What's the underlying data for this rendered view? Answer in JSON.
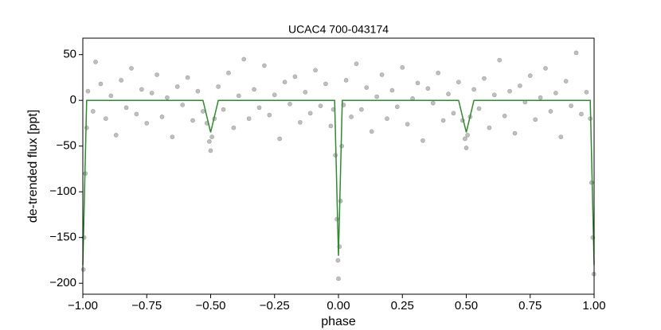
{
  "chart_data": {
    "type": "scatter",
    "title": "UCAC4 700-043174",
    "x_label": "phase",
    "y_label": "de-trended flux [ppt]",
    "xlim": [
      -1,
      1
    ],
    "ylim": [
      -212,
      68
    ],
    "xticks": [
      {
        "value": -1,
        "label": "−1.00"
      },
      {
        "value": -0.75,
        "label": "−0.75"
      },
      {
        "value": -0.5,
        "label": "−0.50"
      },
      {
        "value": -0.25,
        "label": "−0.25"
      },
      {
        "value": 0,
        "label": "0.00"
      },
      {
        "value": 0.25,
        "label": "0.25"
      },
      {
        "value": 0.5,
        "label": "0.50"
      },
      {
        "value": 0.75,
        "label": "0.75"
      },
      {
        "value": 1,
        "label": "1.00"
      }
    ],
    "yticks": [
      {
        "value": -200,
        "label": "−200"
      },
      {
        "value": -150,
        "label": "−150"
      },
      {
        "value": -100,
        "label": "−100"
      },
      {
        "value": -50,
        "label": "−50"
      },
      0,
      50
    ],
    "series": [
      {
        "type": "scatter",
        "color": "#000000",
        "opacity": 0.25,
        "x": [
          -0.998,
          -0.995,
          -0.99,
          -0.985,
          -0.98,
          -0.96,
          -0.95,
          -0.93,
          -0.91,
          -0.89,
          -0.87,
          -0.85,
          -0.83,
          -0.81,
          -0.79,
          -0.77,
          -0.75,
          -0.73,
          -0.71,
          -0.69,
          -0.67,
          -0.65,
          -0.63,
          -0.61,
          -0.59,
          -0.57,
          -0.55,
          -0.53,
          -0.515,
          -0.505,
          -0.5,
          -0.495,
          -0.485,
          -0.47,
          -0.45,
          -0.43,
          -0.41,
          -0.39,
          -0.37,
          -0.35,
          -0.33,
          -0.31,
          -0.29,
          -0.27,
          -0.25,
          -0.23,
          -0.21,
          -0.19,
          -0.17,
          -0.15,
          -0.13,
          -0.11,
          -0.09,
          -0.07,
          -0.05,
          -0.03,
          -0.02,
          -0.012,
          -0.006,
          -0.002,
          0,
          0.004,
          0.008,
          0.013,
          0.02,
          0.03,
          0.05,
          0.07,
          0.09,
          0.11,
          0.13,
          0.15,
          0.17,
          0.19,
          0.21,
          0.23,
          0.25,
          0.27,
          0.29,
          0.31,
          0.33,
          0.35,
          0.37,
          0.39,
          0.41,
          0.43,
          0.45,
          0.47,
          0.485,
          0.495,
          0.5,
          0.505,
          0.515,
          0.53,
          0.55,
          0.57,
          0.59,
          0.61,
          0.63,
          0.65,
          0.67,
          0.69,
          0.71,
          0.73,
          0.75,
          0.77,
          0.79,
          0.81,
          0.83,
          0.85,
          0.87,
          0.89,
          0.91,
          0.93,
          0.95,
          0.97,
          0.985,
          0.99,
          0.995,
          0.999
        ],
        "values": [
          -185,
          -150,
          -80,
          -30,
          10,
          -12,
          42,
          18,
          -20,
          5,
          -38,
          22,
          -8,
          35,
          -15,
          12,
          -25,
          8,
          28,
          -18,
          3,
          -40,
          15,
          -5,
          25,
          -22,
          10,
          -12,
          -25,
          -45,
          -55,
          -40,
          -20,
          15,
          -10,
          30,
          -30,
          5,
          45,
          -20,
          12,
          -8,
          38,
          -16,
          6,
          -42,
          20,
          -4,
          26,
          -24,
          9,
          -14,
          33,
          -6,
          18,
          -28,
          -10,
          -60,
          -130,
          -175,
          -195,
          -160,
          -110,
          -50,
          -5,
          22,
          -18,
          40,
          -10,
          14,
          -34,
          4,
          28,
          -20,
          11,
          -7,
          36,
          -26,
          2,
          19,
          -44,
          13,
          -3,
          30,
          -22,
          7,
          -14,
          20,
          -22,
          -42,
          -52,
          -38,
          -18,
          12,
          -9,
          24,
          -30,
          6,
          44,
          -17,
          10,
          -36,
          16,
          -2,
          27,
          -21,
          3,
          35,
          -12,
          8,
          -40,
          21,
          -6,
          52,
          -15,
          9,
          -20,
          -90,
          -150,
          -190
        ]
      },
      {
        "type": "line",
        "color": "#2e8b2e",
        "x": [
          -1,
          -0.985,
          -0.53,
          -0.5,
          -0.47,
          -0.015,
          0,
          0.015,
          0.47,
          0.5,
          0.53,
          0.985,
          1
        ],
        "values": [
          -180,
          0,
          0,
          -35,
          0,
          0,
          -170,
          0,
          0,
          -35,
          0,
          0,
          -180
        ]
      }
    ]
  }
}
